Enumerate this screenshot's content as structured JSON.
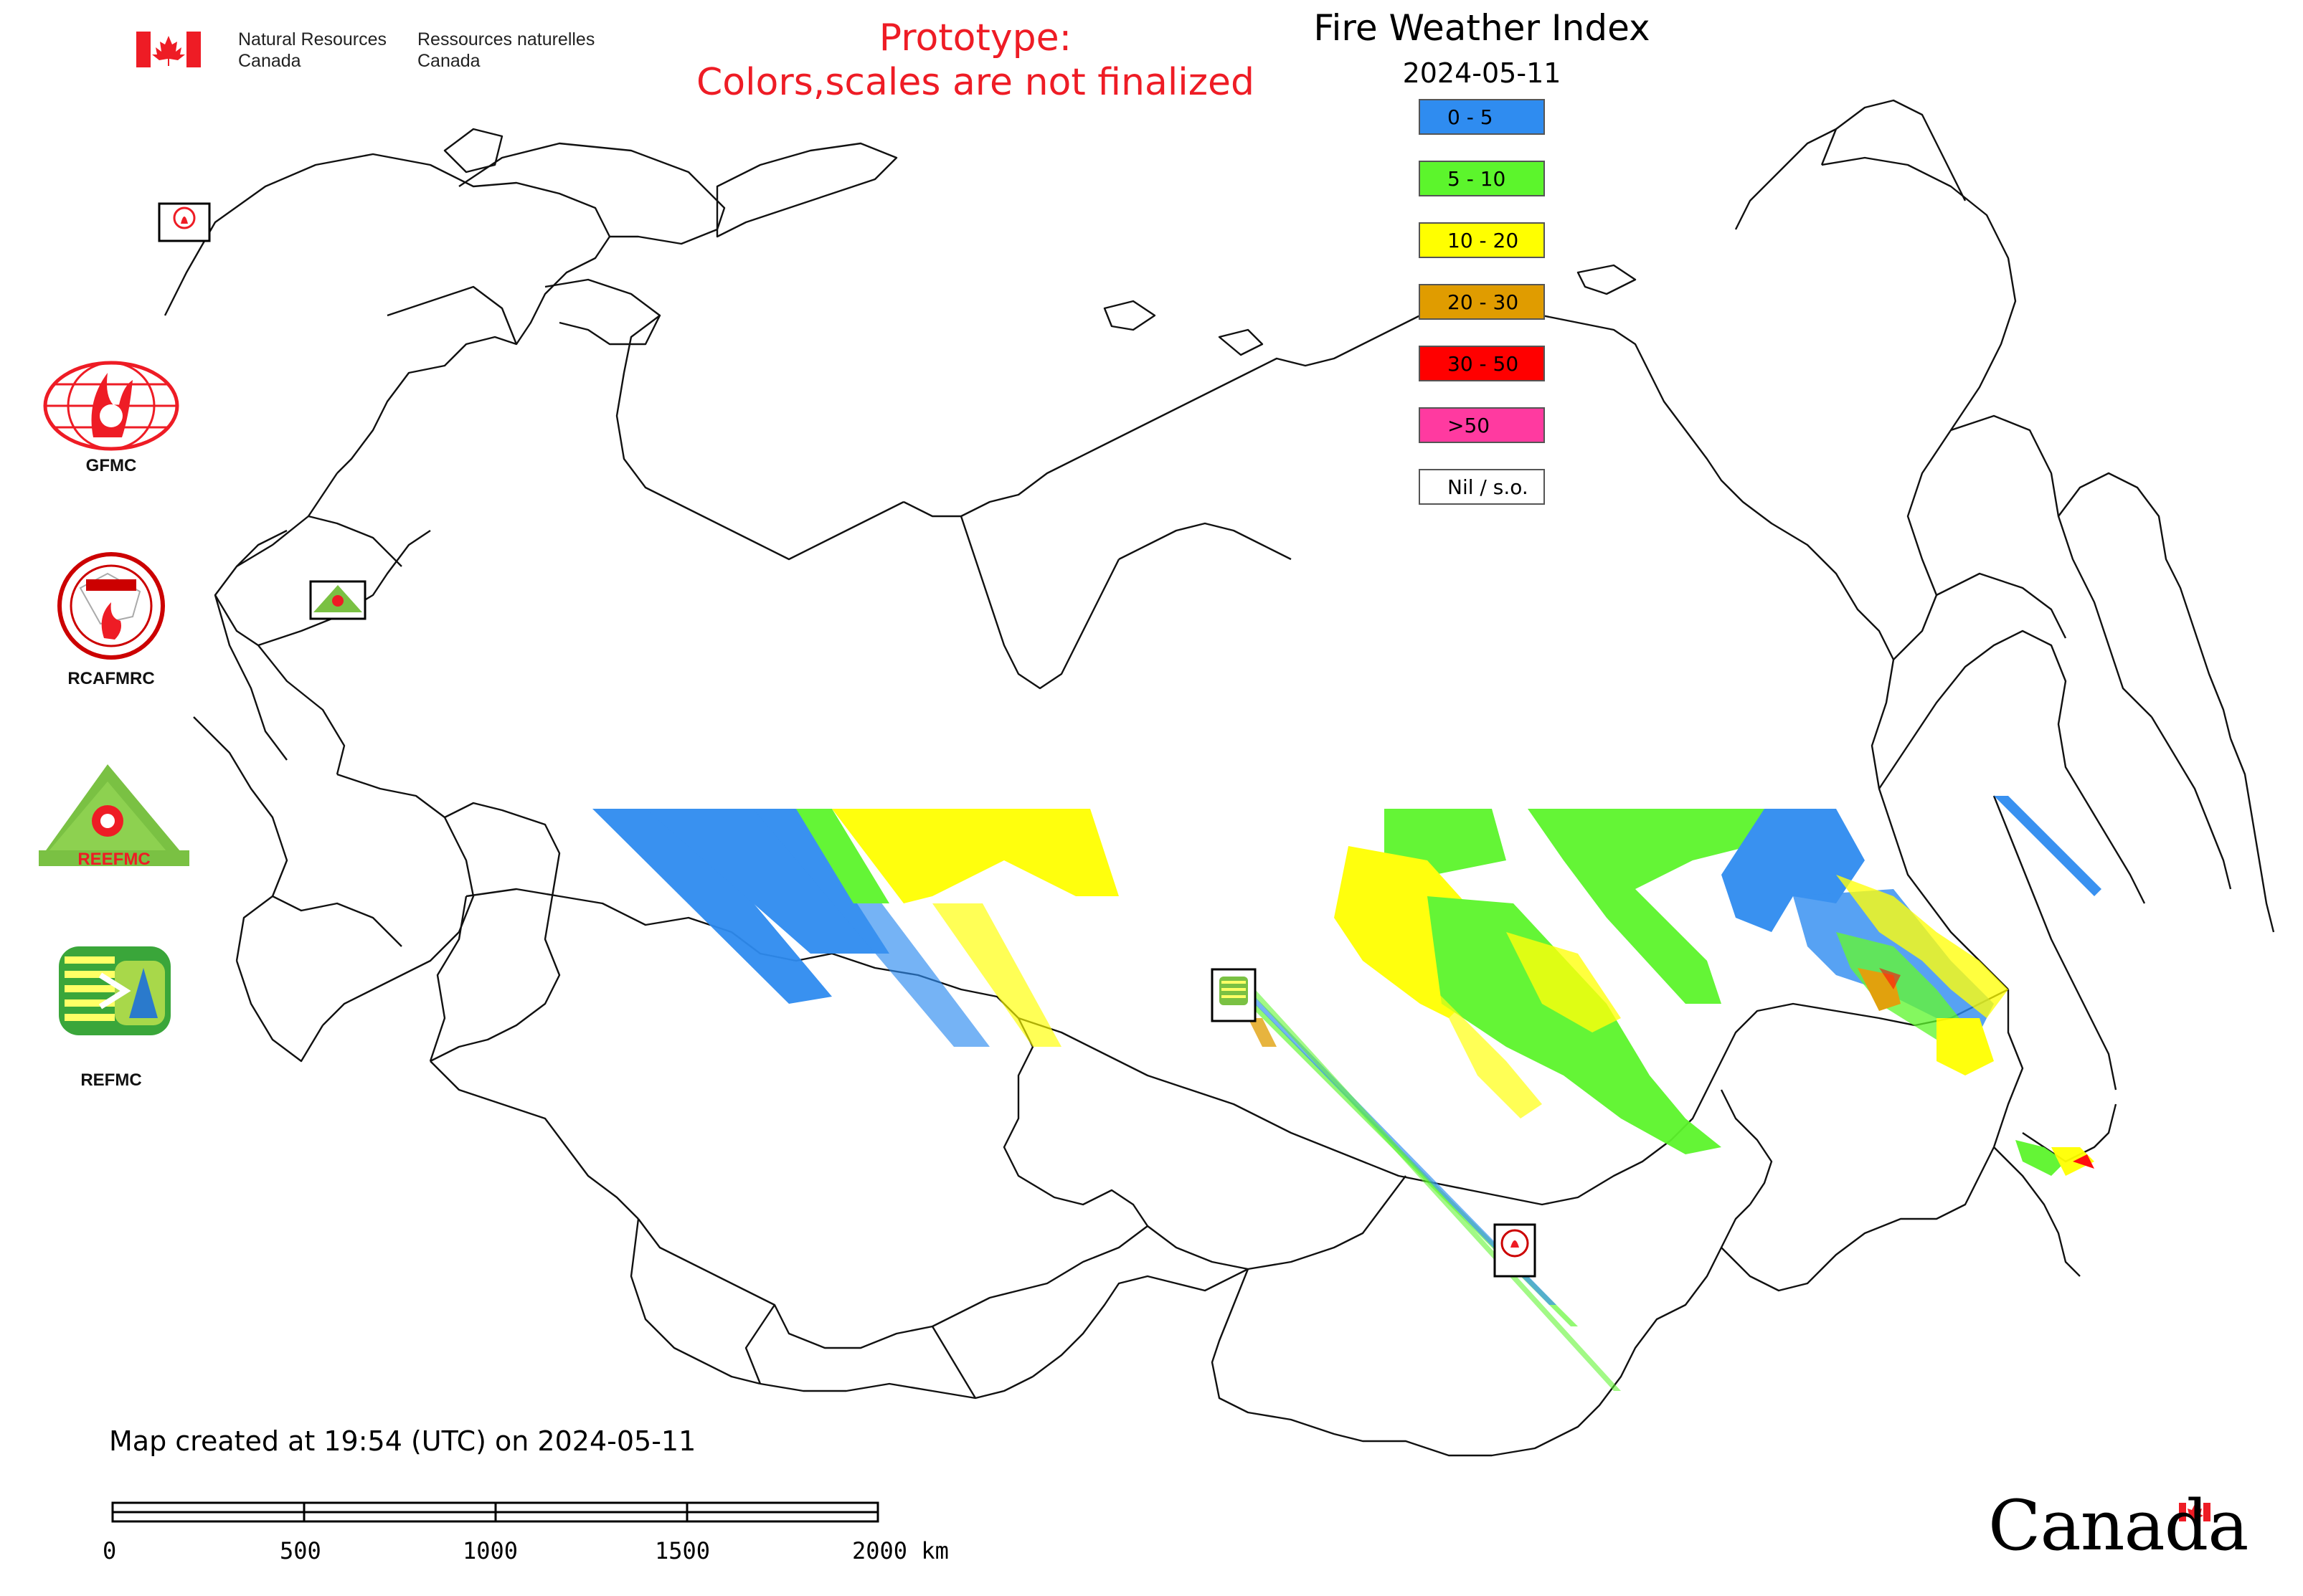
{
  "header": {
    "dept_en_line1": "Natural Resources",
    "dept_en_line2": "Canada",
    "dept_fr_line1": "Ressources naturelles",
    "dept_fr_line2": "Canada",
    "prototype_line1": "Prototype:",
    "prototype_line2": "Colors,scales are not finalized",
    "prototype_color": "#ee1c25"
  },
  "legend": {
    "title": "Fire Weather Index",
    "date": "2024-05-11",
    "items": [
      {
        "label": "0 - 5",
        "color": "#2f8cf0"
      },
      {
        "label": "5 - 10",
        "color": "#5cf52c"
      },
      {
        "label": "10 - 20",
        "color": "#ffff00"
      },
      {
        "label": "20 - 30",
        "color": "#e09c00"
      },
      {
        "label": "30 - 50",
        "color": "#ff0000"
      },
      {
        "label": ">50",
        "color": "#ff3aa0"
      },
      {
        "label": "Nil / s.o.",
        "color": "#ffffff"
      }
    ]
  },
  "logos": [
    {
      "label": "GFMC",
      "icon": "gfmc-logo"
    },
    {
      "label": "RCAFMRC",
      "icon": "rcafmrc-logo"
    },
    {
      "label": "",
      "icon": "reefmc-logo"
    },
    {
      "label": "REFMC",
      "icon": "refmc-logo"
    }
  ],
  "footer": {
    "created": "Map created at 19:54 (UTC) on 2024-05-11",
    "scale_labels": [
      "0",
      "500",
      "1000",
      "1500",
      "2000 km"
    ],
    "canada_wordmark": "Canada"
  }
}
